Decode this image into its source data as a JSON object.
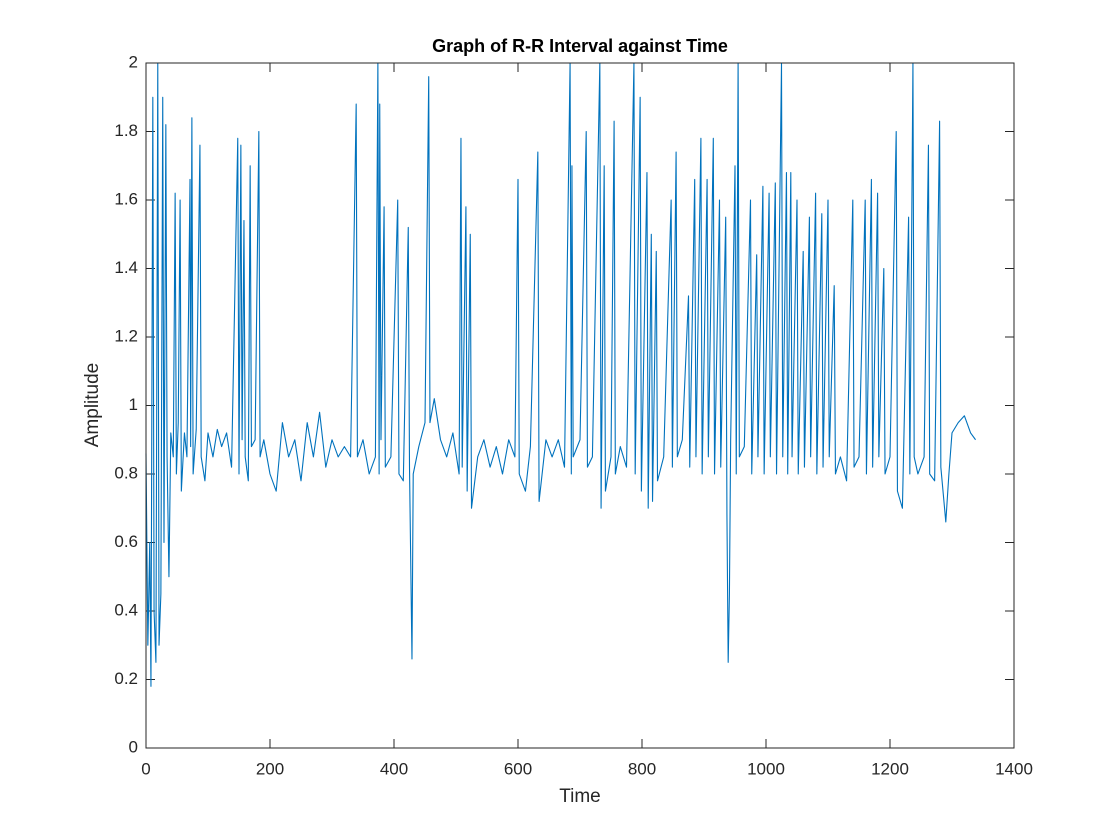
{
  "chart_data": {
    "type": "line",
    "title": "Graph of R-R Interval against Time",
    "xlabel": "Time",
    "ylabel": "Amplitude",
    "x": [
      0,
      3,
      6,
      8,
      11,
      13,
      16,
      19,
      21,
      24,
      27,
      29,
      32,
      34,
      37,
      40,
      44,
      47,
      49,
      52,
      55,
      57,
      62,
      66,
      71,
      72,
      74,
      76,
      81,
      87,
      89,
      95,
      100,
      108,
      115,
      122,
      130,
      138,
      148,
      150,
      153,
      155,
      158,
      160,
      165,
      168,
      170,
      176,
      182,
      184,
      190,
      200,
      210,
      220,
      230,
      240,
      250,
      260,
      270,
      280,
      290,
      300,
      310,
      320,
      330,
      339,
      341,
      350,
      360,
      370,
      374,
      376,
      377,
      379,
      384,
      386,
      395,
      406,
      408,
      415,
      423,
      425,
      429,
      431,
      440,
      450,
      456,
      458,
      465,
      475,
      485,
      495,
      505,
      508,
      510,
      516,
      518,
      523,
      525,
      535,
      545,
      555,
      565,
      575,
      585,
      595,
      600,
      602,
      612,
      620,
      632,
      634,
      645,
      655,
      665,
      675,
      684,
      686,
      687,
      689,
      700,
      710,
      712,
      720,
      732,
      734,
      739,
      741,
      750,
      755,
      757,
      765,
      775,
      787,
      789,
      797,
      799,
      808,
      810,
      815,
      817,
      823,
      825,
      835,
      847,
      849,
      855,
      857,
      865,
      875,
      877,
      885,
      887,
      895,
      897,
      905,
      907,
      915,
      917,
      925,
      927,
      935,
      937,
      939,
      941,
      943,
      950,
      952,
      955,
      957,
      965,
      975,
      977,
      985,
      987,
      995,
      997,
      1005,
      1007,
      1015,
      1017,
      1025,
      1027,
      1033,
      1035,
      1040,
      1042,
      1050,
      1052,
      1060,
      1062,
      1070,
      1072,
      1080,
      1082,
      1090,
      1092,
      1100,
      1102,
      1110,
      1112,
      1120,
      1130,
      1140,
      1142,
      1150,
      1160,
      1162,
      1170,
      1172,
      1180,
      1182,
      1190,
      1192,
      1200,
      1210,
      1212,
      1220,
      1230,
      1232,
      1237,
      1239,
      1245,
      1255,
      1262,
      1264,
      1272,
      1280,
      1282,
      1290,
      1295,
      1300,
      1310,
      1320,
      1330,
      1338
    ],
    "series": [
      {
        "name": "R-R",
        "color": "#0072bd",
        "values": [
          0.86,
          0.3,
          0.6,
          0.18,
          1.9,
          0.4,
          0.25,
          2,
          0.3,
          0.45,
          1.9,
          0.6,
          1.82,
          0.85,
          0.5,
          0.92,
          0.85,
          1.62,
          0.8,
          0.95,
          1.6,
          0.75,
          0.92,
          0.85,
          1.66,
          0.88,
          1.84,
          0.8,
          0.93,
          1.76,
          0.85,
          0.78,
          0.92,
          0.85,
          0.93,
          0.88,
          0.92,
          0.82,
          1.78,
          0.8,
          1.76,
          0.9,
          1.54,
          0.85,
          0.78,
          1.7,
          0.88,
          0.9,
          1.8,
          0.85,
          0.9,
          0.8,
          0.75,
          0.95,
          0.85,
          0.9,
          0.78,
          0.95,
          0.85,
          0.98,
          0.82,
          0.9,
          0.85,
          0.88,
          0.85,
          1.88,
          0.85,
          0.9,
          0.8,
          0.85,
          2,
          0.8,
          1.88,
          0.9,
          1.58,
          0.82,
          0.85,
          1.6,
          0.8,
          0.78,
          1.52,
          0.82,
          0.26,
          0.8,
          0.88,
          0.95,
          1.96,
          0.95,
          1.02,
          0.9,
          0.85,
          0.92,
          0.8,
          1.78,
          0.82,
          1.58,
          0.75,
          1.5,
          0.7,
          0.85,
          0.9,
          0.82,
          0.88,
          0.8,
          0.9,
          0.85,
          1.66,
          0.8,
          0.75,
          0.88,
          1.74,
          0.72,
          0.9,
          0.85,
          0.9,
          0.82,
          2,
          0.8,
          1.7,
          0.85,
          0.9,
          1.8,
          0.82,
          0.85,
          2,
          0.7,
          1.7,
          0.75,
          0.85,
          1.83,
          0.8,
          0.88,
          0.82,
          2,
          0.8,
          1.9,
          0.75,
          1.68,
          0.7,
          1.5,
          0.72,
          1.45,
          0.78,
          0.85,
          1.6,
          0.82,
          1.74,
          0.85,
          0.9,
          1.32,
          0.82,
          1.66,
          0.85,
          1.78,
          0.8,
          1.66,
          0.85,
          1.78,
          0.8,
          1.6,
          0.82,
          1.55,
          0.68,
          0.25,
          0.45,
          0.9,
          1.7,
          0.8,
          2,
          0.85,
          0.88,
          1.6,
          0.8,
          1.44,
          0.85,
          1.64,
          0.8,
          1.62,
          0.85,
          1.65,
          0.8,
          2,
          0.85,
          1.68,
          0.8,
          1.68,
          0.85,
          1.6,
          0.8,
          1.45,
          0.82,
          1.55,
          0.85,
          1.62,
          0.8,
          1.56,
          0.82,
          1.6,
          0.85,
          1.35,
          0.8,
          0.85,
          0.78,
          1.6,
          0.82,
          0.85,
          1.6,
          0.8,
          1.66,
          0.82,
          1.62,
          0.85,
          1.4,
          0.8,
          0.85,
          1.8,
          0.75,
          0.7,
          1.55,
          0.8,
          2,
          0.85,
          0.8,
          0.85,
          1.76,
          0.8,
          0.78,
          1.83,
          0.82,
          0.66,
          0.8,
          0.92,
          0.95,
          0.97,
          0.92,
          0.9
        ]
      }
    ],
    "xlim": [
      0,
      1400
    ],
    "xticks": [
      0,
      200,
      400,
      600,
      800,
      1000,
      1200,
      1400
    ],
    "ylim": [
      0,
      2
    ],
    "yticks": [
      0,
      0.2,
      0.4,
      0.6,
      0.8,
      1,
      1.2,
      1.4,
      1.6,
      1.8,
      2
    ]
  }
}
